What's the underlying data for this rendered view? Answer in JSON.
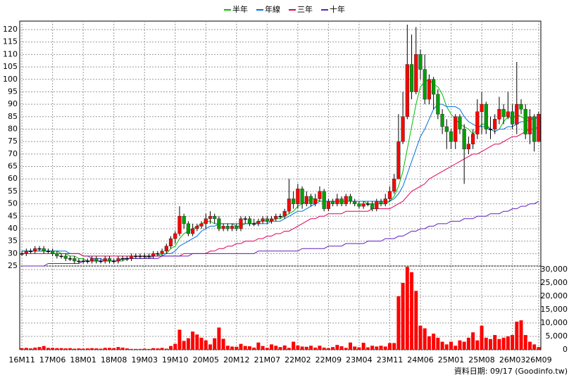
{
  "chart_data": {
    "type": "candlestick",
    "categories": [
      "16M11",
      null,
      null,
      null,
      null,
      null,
      null,
      "17M06",
      null,
      null,
      null,
      null,
      null,
      null,
      "18M01",
      null,
      null,
      null,
      null,
      null,
      null,
      "18M08",
      null,
      null,
      null,
      null,
      null,
      null,
      "19M03",
      null,
      null,
      null,
      null,
      null,
      null,
      "19M10",
      null,
      null,
      null,
      null,
      null,
      null,
      "20M05",
      null,
      null,
      null,
      null,
      null,
      null,
      "20M12",
      null,
      null,
      null,
      null,
      null,
      null,
      "21M07",
      null,
      null,
      null,
      null,
      null,
      null,
      "22M02",
      null,
      null,
      null,
      null,
      null,
      null,
      "22M09",
      null,
      null,
      null,
      null,
      null,
      null,
      "23M04",
      null,
      null,
      null,
      null,
      null,
      null,
      "23M11",
      null,
      null,
      null,
      null,
      null,
      null,
      "24M06",
      null,
      null,
      null,
      null,
      null,
      null,
      "25M01",
      null,
      null,
      null,
      null,
      null,
      null,
      "25M08",
      null,
      null,
      null,
      null,
      null,
      null,
      "26M03",
      null,
      null,
      null,
      null,
      null,
      "26M09"
    ],
    "open": [
      30,
      30,
      31,
      31,
      32,
      32,
      31,
      31,
      30,
      29,
      29,
      28,
      28,
      27,
      27,
      27,
      27,
      28,
      27,
      27,
      28,
      27,
      27,
      28,
      28,
      28,
      29,
      29,
      29,
      29,
      29,
      30,
      30,
      31,
      33,
      36,
      38,
      45,
      42,
      38,
      40,
      41,
      42,
      44,
      45,
      44,
      40,
      41,
      40,
      41,
      40,
      44,
      44,
      42,
      42,
      43,
      44,
      43,
      44,
      45,
      45,
      47,
      52,
      50,
      56,
      50,
      53,
      50,
      52,
      55,
      48,
      51,
      50,
      52,
      50,
      53,
      51,
      50,
      49,
      50,
      50,
      48,
      51,
      50,
      52,
      55,
      60,
      75,
      85,
      106,
      95,
      110,
      104,
      92,
      100,
      94,
      86,
      81,
      79,
      75,
      85,
      80,
      72,
      74,
      78,
      87,
      90,
      80,
      80,
      84,
      88,
      85,
      87,
      82,
      90,
      88,
      78,
      85,
      75
    ],
    "high": [
      31,
      32,
      32,
      33,
      33,
      33,
      32,
      32,
      31,
      30,
      30,
      29,
      29,
      28,
      28,
      28,
      29,
      29,
      28,
      29,
      29,
      28,
      29,
      29,
      29,
      30,
      30,
      30,
      30,
      30,
      31,
      31,
      32,
      34,
      37,
      39,
      49,
      46,
      43,
      42,
      42,
      43,
      46,
      47,
      46,
      45,
      42,
      42,
      42,
      42,
      45,
      45,
      45,
      44,
      44,
      45,
      45,
      45,
      46,
      46,
      48,
      60,
      55,
      58,
      57,
      55,
      54,
      54,
      57,
      56,
      52,
      52,
      54,
      53,
      54,
      54,
      52,
      51,
      51,
      51,
      51,
      52,
      52,
      54,
      57,
      62,
      86,
      95,
      122,
      118,
      121,
      112,
      110,
      102,
      101,
      96,
      88,
      84,
      80,
      86,
      86,
      82,
      77,
      80,
      92,
      95,
      91,
      85,
      86,
      93,
      90,
      95,
      90,
      107,
      92,
      90,
      88,
      86,
      87
    ],
    "low": [
      29,
      29,
      30,
      30,
      31,
      30,
      30,
      29,
      28,
      28,
      27,
      27,
      26,
      26,
      26,
      26,
      26,
      26,
      26,
      26,
      26,
      26,
      26,
      27,
      27,
      27,
      28,
      28,
      28,
      28,
      28,
      29,
      29,
      30,
      32,
      34,
      37,
      40,
      37,
      37,
      39,
      40,
      40,
      42,
      42,
      39,
      39,
      39,
      39,
      39,
      39,
      42,
      41,
      41,
      41,
      42,
      42,
      42,
      43,
      44,
      44,
      46,
      48,
      48,
      48,
      49,
      49,
      49,
      51,
      47,
      47,
      49,
      49,
      49,
      49,
      50,
      49,
      48,
      48,
      49,
      47,
      47,
      49,
      49,
      51,
      54,
      60,
      74,
      84,
      92,
      94,
      100,
      90,
      90,
      88,
      84,
      78,
      72,
      72,
      72,
      78,
      58,
      70,
      72,
      76,
      78,
      78,
      76,
      78,
      82,
      82,
      84,
      80,
      78,
      86,
      76,
      74,
      71,
      75
    ],
    "close": [
      30,
      31,
      31,
      32,
      32,
      31,
      31,
      30,
      29,
      29,
      28,
      28,
      27,
      27,
      27,
      27,
      28,
      27,
      27,
      28,
      27,
      27,
      28,
      28,
      28,
      29,
      29,
      29,
      29,
      29,
      30,
      30,
      31,
      33,
      36,
      38,
      45,
      42,
      38,
      40,
      41,
      42,
      44,
      45,
      44,
      40,
      41,
      40,
      41,
      40,
      44,
      44,
      42,
      42,
      43,
      44,
      43,
      44,
      45,
      45,
      47,
      52,
      50,
      56,
      50,
      53,
      50,
      52,
      55,
      48,
      51,
      50,
      52,
      50,
      53,
      51,
      50,
      49,
      50,
      50,
      48,
      51,
      50,
      52,
      55,
      60,
      75,
      85,
      106,
      95,
      110,
      104,
      92,
      100,
      94,
      86,
      81,
      79,
      75,
      85,
      80,
      72,
      74,
      78,
      87,
      90,
      80,
      80,
      84,
      88,
      85,
      87,
      82,
      90,
      88,
      78,
      85,
      75,
      86
    ],
    "volume": [
      600,
      700,
      500,
      800,
      1000,
      1400,
      700,
      700,
      600,
      600,
      500,
      600,
      400,
      500,
      400,
      500,
      600,
      500,
      400,
      700,
      700,
      600,
      1000,
      800,
      500,
      300,
      300,
      300,
      400,
      300,
      600,
      500,
      700,
      400,
      1400,
      2200,
      7500,
      3300,
      4300,
      6800,
      5700,
      4500,
      3500,
      2000,
      4300,
      8300,
      4100,
      1500,
      1200,
      1100,
      2200,
      1400,
      1300,
      800,
      2700,
      1400,
      700,
      2000,
      1500,
      1000,
      1600,
      700,
      3000,
      1600,
      1200,
      1100,
      1500,
      800,
      1500,
      800,
      600,
      1000,
      1800,
      1300,
      700,
      2700,
      1200,
      900,
      2600,
      900,
      1500,
      1200,
      1500,
      1200,
      2500,
      2500,
      20000,
      25000,
      31000,
      29000,
      22000,
      9000,
      8000,
      5000,
      6000,
      4500,
      3000,
      2000,
      3000,
      1500,
      3500,
      3000,
      4500,
      6500,
      3500,
      9000,
      4500,
      4000,
      5500,
      4000,
      4500,
      5000,
      5500,
      10500,
      11000,
      5500,
      3000,
      2000,
      1000
    ],
    "up_color": "#ff0000",
    "down_color": "#00a000",
    "volume_color": "#ff0000",
    "series": [
      {
        "name": "半年",
        "color": "#00c000",
        "values": [
          31,
          31,
          31,
          31,
          31,
          31,
          31,
          31,
          31,
          30,
          30,
          29,
          29,
          28,
          28,
          27,
          27,
          27,
          27,
          27,
          27,
          27,
          27,
          27,
          28,
          28,
          28,
          28,
          28,
          29,
          29,
          29,
          30,
          30,
          32,
          33,
          36,
          38,
          39,
          40,
          41,
          42,
          43,
          43,
          42,
          42,
          42,
          42,
          42,
          41,
          41,
          42,
          42,
          42,
          43,
          43,
          43,
          43,
          44,
          44,
          45,
          46,
          47,
          49,
          50,
          51,
          52,
          52,
          51,
          51,
          51,
          51,
          51,
          51,
          51,
          51,
          51,
          51,
          51,
          50,
          50,
          50,
          50,
          50,
          51,
          53,
          57,
          63,
          72,
          81,
          90,
          97,
          99,
          100,
          98,
          97,
          94,
          89,
          86,
          84,
          82,
          81,
          80,
          78,
          80,
          82,
          82,
          80,
          79,
          80,
          83,
          85,
          84,
          86,
          85,
          84,
          85,
          84,
          85
        ]
      },
      {
        "name": "年線",
        "color": "#0070e0",
        "values": [
          31,
          31,
          31,
          31,
          31,
          31,
          31,
          31,
          31,
          31,
          31,
          30,
          30,
          30,
          29,
          29,
          28,
          28,
          28,
          27,
          27,
          27,
          27,
          28,
          28,
          28,
          28,
          28,
          28,
          28,
          29,
          29,
          29,
          30,
          30,
          31,
          33,
          34,
          35,
          36,
          37,
          39,
          40,
          41,
          41,
          42,
          42,
          42,
          42,
          42,
          42,
          42,
          42,
          42,
          42,
          42,
          42,
          43,
          43,
          43,
          44,
          45,
          46,
          47,
          47,
          48,
          49,
          50,
          51,
          51,
          51,
          51,
          51,
          51,
          51,
          51,
          51,
          51,
          51,
          51,
          51,
          51,
          51,
          51,
          51,
          52,
          54,
          57,
          62,
          67,
          72,
          77,
          80,
          84,
          88,
          90,
          90,
          89,
          89,
          89,
          88,
          85,
          83,
          82,
          81,
          81,
          81,
          80,
          79,
          80,
          80,
          81,
          81,
          82,
          83,
          83,
          84,
          84,
          85
        ]
      },
      {
        "name": "三年",
        "color": "#e0005a",
        "values": [
          30,
          30,
          30,
          30,
          30,
          30,
          30,
          30,
          30,
          30,
          30,
          30,
          30,
          30,
          29,
          29,
          29,
          29,
          29,
          29,
          29,
          29,
          29,
          29,
          29,
          29,
          29,
          29,
          29,
          29,
          29,
          29,
          29,
          29,
          29,
          29,
          29,
          30,
          30,
          30,
          30,
          30,
          30,
          31,
          31,
          32,
          32,
          33,
          33,
          34,
          34,
          35,
          35,
          35,
          36,
          36,
          37,
          37,
          38,
          38,
          39,
          39,
          40,
          41,
          42,
          43,
          44,
          44,
          45,
          45,
          46,
          46,
          46,
          46,
          47,
          47,
          47,
          47,
          47,
          47,
          48,
          48,
          48,
          48,
          48,
          49,
          50,
          51,
          53,
          55,
          56,
          57,
          58,
          60,
          61,
          62,
          63,
          64,
          65,
          66,
          67,
          68,
          69,
          70,
          70,
          71,
          72,
          73,
          74,
          74,
          75,
          76,
          77,
          77,
          78,
          79,
          80,
          80,
          81
        ]
      },
      {
        "name": "十年",
        "color": "#6020c0",
        "values": [
          25,
          25,
          25,
          25,
          25,
          25,
          26,
          26,
          26,
          26,
          26,
          26,
          26,
          26,
          27,
          27,
          27,
          27,
          27,
          27,
          27,
          27,
          27,
          28,
          28,
          28,
          28,
          28,
          28,
          28,
          28,
          28,
          29,
          29,
          29,
          29,
          29,
          29,
          29,
          30,
          30,
          30,
          30,
          30,
          30,
          30,
          30,
          30,
          30,
          30,
          30,
          30,
          30,
          30,
          31,
          31,
          31,
          31,
          31,
          31,
          31,
          31,
          31,
          31,
          32,
          32,
          32,
          32,
          32,
          32,
          33,
          33,
          33,
          33,
          34,
          34,
          34,
          34,
          34,
          35,
          35,
          35,
          35,
          36,
          36,
          36,
          37,
          37,
          38,
          39,
          39,
          40,
          40,
          41,
          41,
          42,
          42,
          42,
          43,
          43,
          43,
          44,
          44,
          44,
          45,
          45,
          45,
          46,
          46,
          46,
          47,
          47,
          48,
          48,
          49,
          49,
          50,
          50,
          51
        ]
      }
    ],
    "ylim": [
      25,
      123.4
    ],
    "yticks": [
      25,
      30,
      35,
      40,
      45,
      50,
      55,
      60,
      65,
      70,
      75,
      80,
      85,
      90,
      95,
      100,
      105,
      110,
      115,
      120
    ],
    "y2lim": [
      0,
      31300
    ],
    "y2ticks": [
      0,
      {
        "value": 5000,
        "label": "5,000"
      },
      {
        "value": 10000,
        "label": "10,000"
      },
      {
        "value": 15000,
        "label": "15,000"
      },
      {
        "value": 20000,
        "label": "20,000"
      },
      {
        "value": 25000,
        "label": "25,000"
      },
      {
        "value": 30000,
        "label": "30,000"
      }
    ],
    "grid": true,
    "legend": "top",
    "source_note": "資料日期: 09/17 (Goodinfo.tw)"
  }
}
